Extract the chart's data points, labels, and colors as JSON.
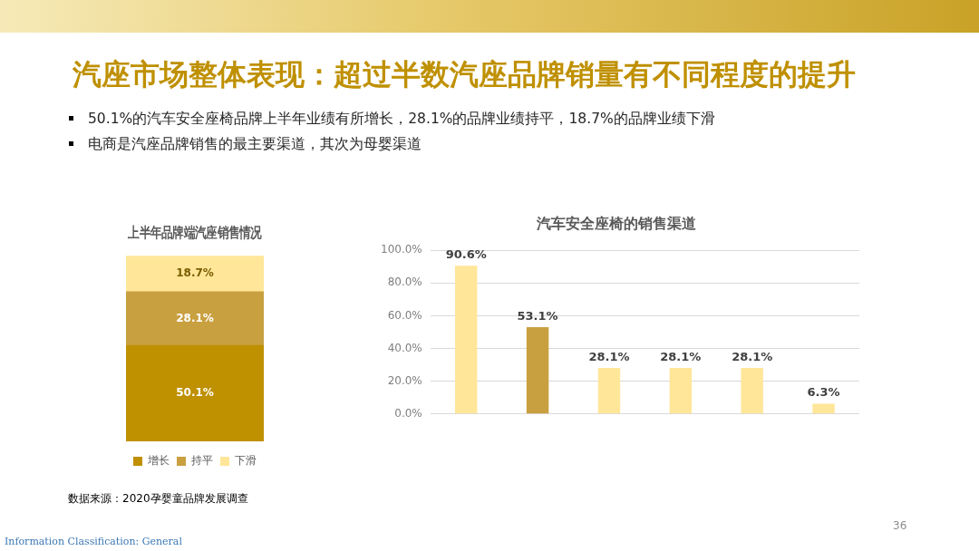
{
  "chart_data": [
    {
      "type": "other",
      "title": "汽座市场整体表现：超过半数汽座品牌销量有不同程度的提升",
      "annotations": [
        "50.1%的汽车安全座椅品牌上半年业绩有所增长，28.1%的品牌业绩持平，18.7%的品牌业绩下滑",
        "电商是汽座品牌销售的最主要渠道，其次为母婴渠道"
      ]
    },
    {
      "type": "bar",
      "title": "上半年品牌端汽座销售情况",
      "categories": [
        null
      ],
      "stacked": true,
      "series": [
        {
          "name": "增长",
          "color": "#bf9000",
          "values": [
            50.1
          ],
          "value_labels": [
            "50.1%"
          ]
        },
        {
          "name": "持平",
          "color": "#c9a040",
          "values": [
            28.1
          ],
          "value_labels": [
            "28.1%"
          ]
        },
        {
          "name": "下滑",
          "color": "#ffe699",
          "values": [
            18.7
          ],
          "value_labels": [
            "18.7%"
          ]
        }
      ],
      "legend": "bottom",
      "tick_labels": false,
      "annotations": [
        "数据来源：2020孕婴童品牌发展调查"
      ]
    },
    {
      "type": "bar",
      "title": "汽车安全座椅的销售渠道",
      "categories": [
        null,
        null,
        null,
        null,
        null,
        null
      ],
      "values": [
        90.6,
        53.1,
        28.1,
        28.1,
        28.1,
        6.3
      ],
      "colors": [
        "#ffe699",
        "#c9a040",
        "#ffe699",
        "#ffe699",
        "#ffe699",
        "#ffe699"
      ],
      "value_labels": [
        "90.6%",
        "53.1%",
        "28.1%",
        "28.1%",
        "28.1%",
        "6.3%"
      ],
      "ylim": [
        0,
        100
      ],
      "yticks": [
        {
          "value": 0,
          "label": "0.0%"
        },
        {
          "value": 20,
          "label": "20.0%"
        },
        {
          "value": 40,
          "label": "40.0%"
        },
        {
          "value": 60,
          "label": "60.0%"
        },
        {
          "value": 80,
          "label": "80.0%"
        },
        {
          "value": 100,
          "label": "100.0%"
        }
      ],
      "grid": "y",
      "tick_labels": "y"
    },
    {
      "type": "other",
      "annotations": [
        "Information Classification: General",
        "36"
      ]
    }
  ]
}
